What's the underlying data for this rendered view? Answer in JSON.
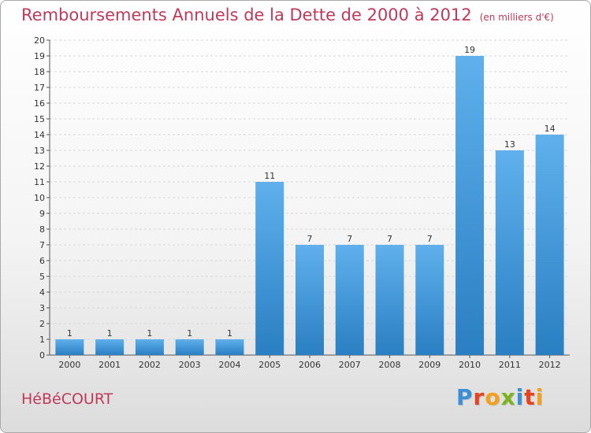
{
  "header": {
    "title": "Remboursements Annuels de la Dette de 2000 à 2012",
    "unit": "(en milliers d'€)"
  },
  "footer": {
    "town": "HéBéCOURT",
    "brand": "Proxiti",
    "brand_colors": [
      "#3b8fd6",
      "#e8421f",
      "#f3a11a",
      "#7ab41d",
      "#3b8fd6",
      "#e8421f",
      "#f3a11a"
    ]
  },
  "chart_data": {
    "type": "bar",
    "categories": [
      "2000",
      "2001",
      "2002",
      "2003",
      "2004",
      "2005",
      "2006",
      "2007",
      "2008",
      "2009",
      "2010",
      "2011",
      "2012"
    ],
    "values": [
      1,
      1,
      1,
      1,
      1,
      11,
      7,
      7,
      7,
      7,
      19,
      13,
      14
    ],
    "data_labels": [
      "1",
      "1",
      "1",
      "1",
      "1",
      "11",
      "7",
      "7",
      "7",
      "7",
      "19",
      "13",
      "14"
    ],
    "yticks": [
      "0",
      "1",
      "2",
      "3",
      "4",
      "5",
      "6",
      "7",
      "8",
      "9",
      "10",
      "11",
      "12",
      "13",
      "14",
      "15",
      "16",
      "17",
      "18",
      "19",
      "20"
    ],
    "ylim": [
      0,
      20
    ],
    "xlabel": "",
    "ylabel": "",
    "bar_color_top": "#5fb0ec",
    "bar_color_bottom": "#2a7fc2",
    "legend": "none"
  }
}
